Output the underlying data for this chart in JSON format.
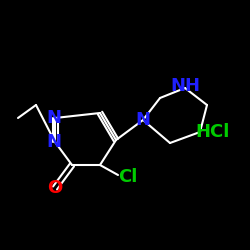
{
  "background_color": "#000000",
  "atom_colors": {
    "N": "#2020ff",
    "O": "#ff0000",
    "Cl": "#00cc00",
    "C": "#ffffff",
    "H": "#ffffff"
  },
  "bond_color": "#ffffff",
  "font_size_atom": 13,
  "lw": 1.5
}
